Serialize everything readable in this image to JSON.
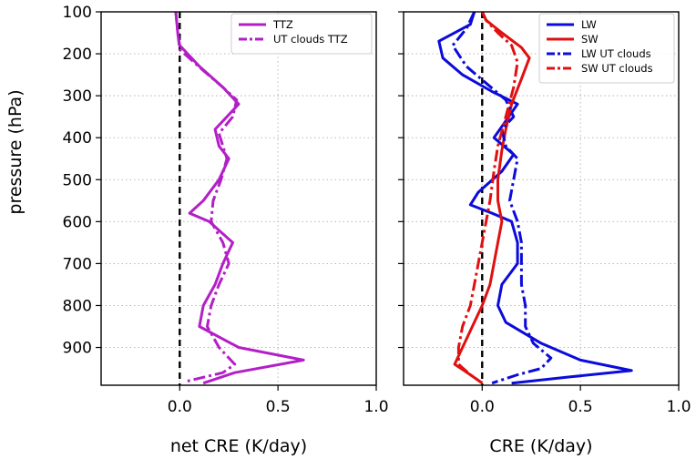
{
  "chart_data": [
    {
      "type": "line",
      "orientation": "vertical-profile",
      "xlabel": "net CRE (K/day)",
      "ylabel": "pressure (hPa)",
      "xlim": [
        -0.4,
        1.0
      ],
      "ylim": [
        990,
        100
      ],
      "xticks": [
        0.0,
        0.5,
        1.0
      ],
      "xtick_labels": [
        "0.0",
        "0.5",
        "1.0"
      ],
      "yticks": [
        100,
        200,
        300,
        400,
        500,
        600,
        700,
        800,
        900
      ],
      "ytick_labels": [
        "100",
        "200",
        "300",
        "400",
        "500",
        "600",
        "700",
        "800",
        "900"
      ],
      "grid": true,
      "zero_line": true,
      "legend": "top-right",
      "series": [
        {
          "name": "TTZ",
          "color": "#b31fc7",
          "style": "solid",
          "points": [
            [
              -0.02,
              100
            ],
            [
              -0.01,
              150
            ],
            [
              0.0,
              180
            ],
            [
              0.1,
              230
            ],
            [
              0.22,
              280
            ],
            [
              0.3,
              320
            ],
            [
              0.24,
              350
            ],
            [
              0.18,
              380
            ],
            [
              0.2,
              420
            ],
            [
              0.25,
              450
            ],
            [
              0.2,
              500
            ],
            [
              0.12,
              550
            ],
            [
              0.05,
              580
            ],
            [
              0.15,
              600
            ],
            [
              0.27,
              650
            ],
            [
              0.22,
              700
            ],
            [
              0.18,
              750
            ],
            [
              0.12,
              800
            ],
            [
              0.1,
              850
            ],
            [
              0.3,
              900
            ],
            [
              0.63,
              930
            ],
            [
              0.28,
              960
            ],
            [
              0.12,
              985
            ]
          ]
        },
        {
          "name": "UT clouds TTZ",
          "color": "#b31fc7",
          "style": "dashdot",
          "points": [
            [
              -0.02,
              100
            ],
            [
              -0.01,
              150
            ],
            [
              0.0,
              190
            ],
            [
              0.12,
              240
            ],
            [
              0.22,
              280
            ],
            [
              0.29,
              310
            ],
            [
              0.27,
              350
            ],
            [
              0.2,
              390
            ],
            [
              0.22,
              420
            ],
            [
              0.24,
              450
            ],
            [
              0.21,
              500
            ],
            [
              0.17,
              550
            ],
            [
              0.16,
              600
            ],
            [
              0.22,
              650
            ],
            [
              0.25,
              700
            ],
            [
              0.2,
              750
            ],
            [
              0.16,
              800
            ],
            [
              0.14,
              850
            ],
            [
              0.2,
              900
            ],
            [
              0.28,
              940
            ],
            [
              0.22,
              960
            ],
            [
              0.04,
              980
            ]
          ]
        }
      ]
    },
    {
      "type": "line",
      "orientation": "vertical-profile",
      "xlabel": "CRE (K/day)",
      "ylabel": "",
      "xlim": [
        -0.4,
        1.0
      ],
      "ylim": [
        990,
        100
      ],
      "xticks": [
        0.0,
        0.5,
        1.0
      ],
      "xtick_labels": [
        "0.0",
        "0.5",
        "1.0"
      ],
      "grid": true,
      "zero_line": true,
      "legend": "top-right",
      "series": [
        {
          "name": "LW",
          "color": "#0b0bdc",
          "style": "solid",
          "points": [
            [
              -0.04,
              100
            ],
            [
              -0.06,
              130
            ],
            [
              -0.22,
              170
            ],
            [
              -0.2,
              210
            ],
            [
              -0.1,
              250
            ],
            [
              0.05,
              290
            ],
            [
              0.18,
              320
            ],
            [
              0.12,
              360
            ],
            [
              0.06,
              400
            ],
            [
              0.16,
              440
            ],
            [
              0.1,
              480
            ],
            [
              -0.02,
              530
            ],
            [
              -0.06,
              560
            ],
            [
              0.05,
              580
            ],
            [
              0.15,
              600
            ],
            [
              0.18,
              650
            ],
            [
              0.18,
              700
            ],
            [
              0.1,
              750
            ],
            [
              0.08,
              800
            ],
            [
              0.12,
              840
            ],
            [
              0.3,
              890
            ],
            [
              0.5,
              930
            ],
            [
              0.76,
              955
            ],
            [
              0.45,
              970
            ],
            [
              0.15,
              985
            ]
          ]
        },
        {
          "name": "SW",
          "color": "#e01010",
          "style": "solid",
          "points": [
            [
              0.0,
              100
            ],
            [
              0.02,
              120
            ],
            [
              0.1,
              150
            ],
            [
              0.2,
              185
            ],
            [
              0.24,
              210
            ],
            [
              0.2,
              260
            ],
            [
              0.15,
              320
            ],
            [
              0.12,
              380
            ],
            [
              0.1,
              430
            ],
            [
              0.08,
              500
            ],
            [
              0.08,
              550
            ],
            [
              0.1,
              600
            ],
            [
              0.08,
              650
            ],
            [
              0.06,
              700
            ],
            [
              0.04,
              750
            ],
            [
              0.0,
              800
            ],
            [
              -0.05,
              850
            ],
            [
              -0.1,
              900
            ],
            [
              -0.14,
              940
            ],
            [
              -0.06,
              965
            ],
            [
              0.0,
              985
            ]
          ]
        },
        {
          "name": "LW UT clouds",
          "color": "#0b0bdc",
          "style": "dashdot",
          "points": [
            [
              -0.04,
              100
            ],
            [
              -0.08,
              140
            ],
            [
              -0.15,
              180
            ],
            [
              -0.08,
              230
            ],
            [
              0.02,
              270
            ],
            [
              0.12,
              310
            ],
            [
              0.16,
              350
            ],
            [
              0.1,
              380
            ],
            [
              0.12,
              420
            ],
            [
              0.18,
              450
            ],
            [
              0.16,
              500
            ],
            [
              0.14,
              550
            ],
            [
              0.18,
              600
            ],
            [
              0.2,
              650
            ],
            [
              0.2,
              700
            ],
            [
              0.2,
              750
            ],
            [
              0.22,
              800
            ],
            [
              0.22,
              850
            ],
            [
              0.26,
              890
            ],
            [
              0.35,
              925
            ],
            [
              0.3,
              950
            ],
            [
              0.18,
              965
            ],
            [
              0.05,
              985
            ]
          ]
        },
        {
          "name": "SW UT clouds",
          "color": "#e01010",
          "style": "dashdot",
          "points": [
            [
              0.0,
              100
            ],
            [
              0.02,
              120
            ],
            [
              0.08,
              150
            ],
            [
              0.15,
              180
            ],
            [
              0.18,
              220
            ],
            [
              0.16,
              280
            ],
            [
              0.12,
              350
            ],
            [
              0.08,
              420
            ],
            [
              0.06,
              480
            ],
            [
              0.04,
              550
            ],
            [
              0.02,
              600
            ],
            [
              0.0,
              650
            ],
            [
              -0.02,
              700
            ],
            [
              -0.04,
              750
            ],
            [
              -0.06,
              800
            ],
            [
              -0.1,
              850
            ],
            [
              -0.12,
              900
            ],
            [
              -0.12,
              940
            ],
            [
              -0.06,
              965
            ],
            [
              0.0,
              985
            ]
          ]
        }
      ]
    }
  ]
}
